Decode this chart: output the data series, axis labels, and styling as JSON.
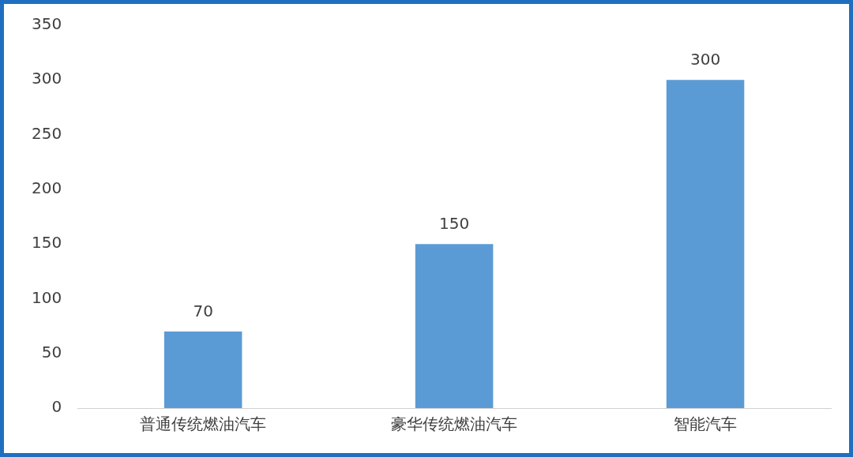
{
  "chart_data": {
    "type": "bar",
    "categories": [
      "普通传统燃油汽车",
      "豪华传统燃油汽车",
      "智能汽车"
    ],
    "values": [
      70,
      150,
      300
    ],
    "color": "#5b9bd5",
    "ylim": [
      0,
      350
    ],
    "yticks": [
      0,
      50,
      100,
      150,
      200,
      250,
      300,
      350
    ],
    "grid": false,
    "legend": false,
    "data_labels": true
  }
}
